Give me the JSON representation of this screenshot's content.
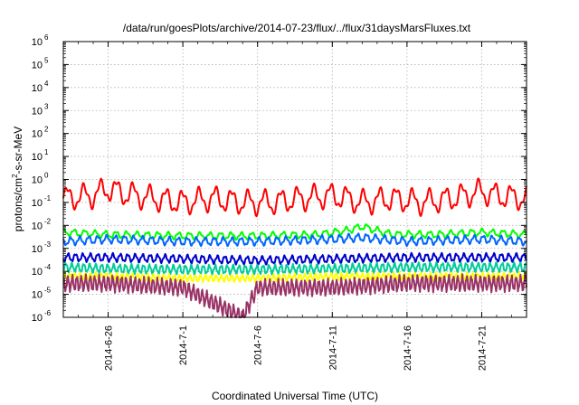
{
  "chart_data": {
    "type": "line",
    "title": "/data/run/goesPlots/archive/2014-07-23/flux/../flux/31daysMarsFluxes.txt",
    "xlabel": "Coordinated Universal Time (UTC)",
    "ylabel": {
      "prefix": "protons/cm",
      "sup": "2",
      "suffix": "-s-sr-MeV"
    },
    "yscale": "log",
    "ylim_exponents": [
      -6,
      6
    ],
    "ytick_labels": [
      {
        "base": "10",
        "exp": "6"
      },
      {
        "base": "10",
        "exp": "5"
      },
      {
        "base": "10",
        "exp": "4"
      },
      {
        "base": "10",
        "exp": "3"
      },
      {
        "base": "10",
        "exp": "2"
      },
      {
        "base": "10",
        "exp": "1"
      },
      {
        "base": "10",
        "exp": "0"
      },
      {
        "base": "10",
        "exp": "-1"
      },
      {
        "base": "10",
        "exp": "-2"
      },
      {
        "base": "10",
        "exp": "-3"
      },
      {
        "base": "10",
        "exp": "-4"
      },
      {
        "base": "10",
        "exp": "-5"
      },
      {
        "base": "10",
        "exp": "-6"
      }
    ],
    "xlim": [
      "2014-06-23",
      "2014-07-24"
    ],
    "xtick_labels": [
      "2014-6-26",
      "2014-7-1",
      "2014-7-6",
      "2014-7-11",
      "2014-7-16",
      "2014-7-21"
    ],
    "xtick_dates": [
      "2014-06-26",
      "2014-07-01",
      "2014-07-06",
      "2014-07-11",
      "2014-07-16",
      "2014-07-21"
    ],
    "grid": true,
    "legend": "none",
    "series": [
      {
        "color": "#ff0000",
        "x": [
          "2014-06-23",
          "2014-06-25",
          "2014-06-26",
          "2014-06-27",
          "2014-06-29",
          "2014-07-01",
          "2014-07-03",
          "2014-07-05",
          "2014-07-07",
          "2014-07-09",
          "2014-07-11",
          "2014-07-12",
          "2014-07-13",
          "2014-07-15",
          "2014-07-17",
          "2014-07-19",
          "2014-07-21",
          "2014-07-22",
          "2014-07-24"
        ],
        "y": [
          0.15,
          0.2,
          0.4,
          0.25,
          0.15,
          0.1,
          0.15,
          0.1,
          0.1,
          0.15,
          0.2,
          0.15,
          0.1,
          0.15,
          0.1,
          0.15,
          0.3,
          0.2,
          0.15
        ],
        "oscillation_factor": 4,
        "oscillation_period_days": 1.1
      },
      {
        "color": "#00ff00",
        "x": [
          "2014-06-23",
          "2014-06-26",
          "2014-07-01",
          "2014-07-06",
          "2014-07-10",
          "2014-07-12",
          "2014-07-13",
          "2014-07-15",
          "2014-07-18",
          "2014-07-21",
          "2014-07-24"
        ],
        "y": [
          0.005,
          0.004,
          0.0035,
          0.0035,
          0.004,
          0.006,
          0.009,
          0.004,
          0.004,
          0.005,
          0.004
        ],
        "oscillation_factor": 1.5,
        "oscillation_period_days": 0.7
      },
      {
        "color": "#0066ff",
        "x": [
          "2014-06-23",
          "2014-06-26",
          "2014-07-01",
          "2014-07-06",
          "2014-07-11",
          "2014-07-13",
          "2014-07-16",
          "2014-07-21",
          "2014-07-24"
        ],
        "y": [
          0.002,
          0.0025,
          0.002,
          0.002,
          0.0025,
          0.003,
          0.002,
          0.0025,
          0.002
        ],
        "oscillation_factor": 1.6,
        "oscillation_period_days": 0.6
      },
      {
        "color": "#0000cc",
        "x": [
          "2014-06-23",
          "2014-06-26",
          "2014-07-01",
          "2014-07-06",
          "2014-07-11",
          "2014-07-16",
          "2014-07-21",
          "2014-07-24"
        ],
        "y": [
          0.0004,
          0.0004,
          0.00035,
          0.0003,
          0.00035,
          0.0004,
          0.0004,
          0.0004
        ],
        "oscillation_factor": 1.6,
        "oscillation_period_days": 0.5
      },
      {
        "color": "#00cc99",
        "x": [
          "2014-06-23",
          "2014-06-26",
          "2014-07-01",
          "2014-07-06",
          "2014-07-11",
          "2014-07-16",
          "2014-07-21",
          "2014-07-24"
        ],
        "y": [
          0.00015,
          0.00013,
          0.00012,
          0.00012,
          0.00013,
          0.00015,
          0.00015,
          0.00015
        ],
        "oscillation_factor": 1.7,
        "oscillation_period_days": 0.4
      },
      {
        "color": "#ffff00",
        "x": [
          "2014-06-23",
          "2014-06-26",
          "2014-07-01",
          "2014-07-06",
          "2014-07-11",
          "2014-07-16",
          "2014-07-21",
          "2014-07-24"
        ],
        "y": [
          6e-05,
          6e-05,
          5e-05,
          5e-05,
          6e-05,
          6e-05,
          6e-05,
          6e-05
        ],
        "oscillation_factor": 1.5,
        "oscillation_period_days": 0.35
      },
      {
        "color": "#993366",
        "x": [
          "2014-06-23",
          "2014-06-26",
          "2014-07-01",
          "2014-07-05",
          "2014-07-06",
          "2014-07-11",
          "2014-07-16",
          "2014-07-21",
          "2014-07-24"
        ],
        "y": [
          3e-05,
          3e-05,
          2e-05,
          1e-06,
          2e-05,
          2e-05,
          3e-05,
          3e-05,
          3e-05
        ],
        "oscillation_factor": 2.5,
        "oscillation_period_days": 0.3
      }
    ]
  }
}
